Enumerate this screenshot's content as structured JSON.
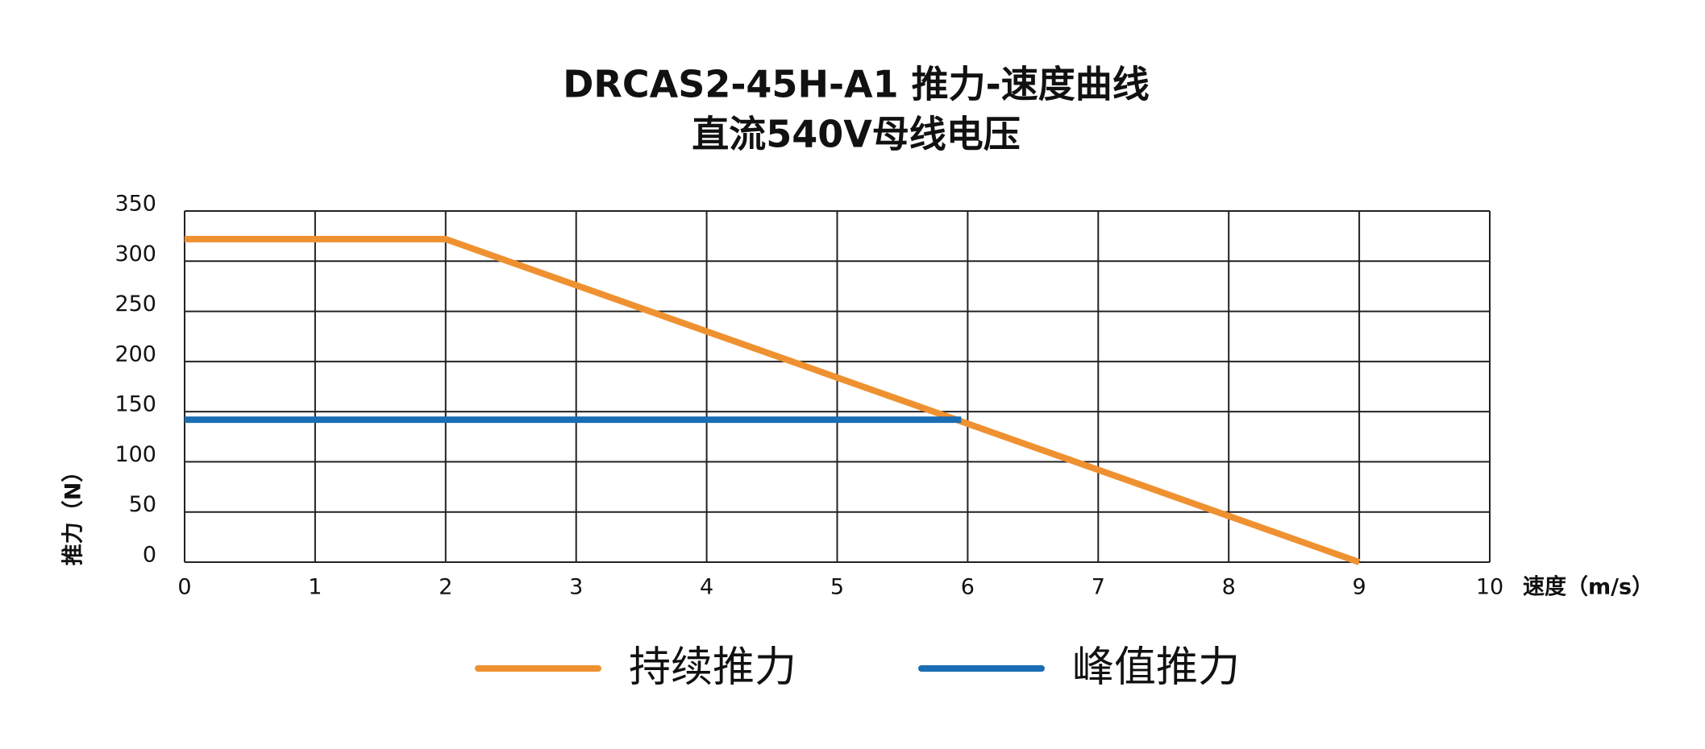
{
  "chart_data": {
    "type": "line",
    "title": "DRCAS2-45H-A1 推力-速度曲线",
    "subtitle": "直流540V母线电压",
    "xlabel": "速度（m/s）",
    "ylabel": "推力（N）",
    "xlim": [
      0,
      10
    ],
    "xticks": [
      0,
      1,
      2,
      3,
      4,
      5,
      6,
      7,
      8,
      9,
      10
    ],
    "ylim": [
      0,
      350
    ],
    "yticks": [
      0,
      50,
      100,
      150,
      200,
      250,
      300,
      350
    ],
    "grid": true,
    "series": [
      {
        "name": "持续推力",
        "color": "#ef9130",
        "x": [
          0,
          2,
          9
        ],
        "values": [
          322,
          322,
          0
        ]
      },
      {
        "name": "峰值推力",
        "color": "#1a6db3",
        "x": [
          0,
          5.95
        ],
        "values": [
          142,
          142
        ]
      }
    ]
  }
}
